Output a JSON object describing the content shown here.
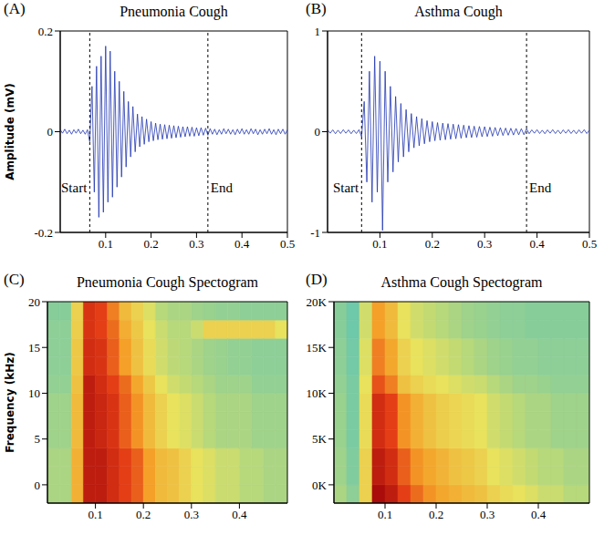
{
  "chart_data": [
    {
      "type": "line",
      "panel": "(A)",
      "title": "Pneumonia Cough",
      "y_label": "Amplitude (mV)",
      "x": [
        0,
        0.005,
        0.01,
        0.015,
        0.02,
        0.025,
        0.03,
        0.035,
        0.04,
        0.045,
        0.05,
        0.055,
        0.06,
        0.065,
        0.07,
        0.075,
        0.08,
        0.085,
        0.09,
        0.095,
        0.1,
        0.105,
        0.11,
        0.115,
        0.12,
        0.125,
        0.13,
        0.135,
        0.14,
        0.145,
        0.15,
        0.155,
        0.16,
        0.165,
        0.17,
        0.175,
        0.18,
        0.185,
        0.19,
        0.195,
        0.2,
        0.205,
        0.21,
        0.215,
        0.22,
        0.225,
        0.23,
        0.235,
        0.24,
        0.245,
        0.25,
        0.255,
        0.26,
        0.265,
        0.27,
        0.275,
        0.28,
        0.285,
        0.29,
        0.295,
        0.3,
        0.305,
        0.31,
        0.315,
        0.32,
        0.325,
        0.33,
        0.335,
        0.34,
        0.345,
        0.35,
        0.355,
        0.36,
        0.365,
        0.37,
        0.375,
        0.38,
        0.385,
        0.39,
        0.395,
        0.4,
        0.405,
        0.41,
        0.415,
        0.42,
        0.425,
        0.43,
        0.435,
        0.44,
        0.445,
        0.45,
        0.455,
        0.46,
        0.465,
        0.47,
        0.475,
        0.48,
        0.485,
        0.49,
        0.495,
        0.5
      ],
      "values": [
        0.004,
        -0.003,
        0.005,
        -0.004,
        0.003,
        -0.005,
        0.004,
        -0.003,
        0.005,
        -0.004,
        0.003,
        -0.005,
        0.004,
        -0.02,
        0.09,
        -0.12,
        0.13,
        -0.17,
        0.15,
        -0.16,
        0.17,
        -0.14,
        0.16,
        -0.13,
        0.12,
        -0.11,
        0.1,
        -0.09,
        0.08,
        -0.07,
        0.06,
        -0.05,
        0.05,
        -0.04,
        0.035,
        -0.03,
        0.03,
        -0.025,
        0.025,
        -0.02,
        0.02,
        -0.018,
        0.017,
        -0.016,
        0.015,
        -0.015,
        0.014,
        -0.014,
        0.013,
        -0.013,
        0.012,
        -0.012,
        0.011,
        -0.011,
        0.01,
        -0.01,
        0.01,
        -0.009,
        0.009,
        -0.009,
        0.008,
        -0.008,
        0.008,
        -0.007,
        0.007,
        -0.007,
        0.006,
        -0.005,
        0.005,
        -0.006,
        0.004,
        -0.005,
        0.006,
        -0.004,
        0.005,
        -0.005,
        0.004,
        -0.006,
        0.005,
        -0.004,
        0.006,
        -0.005,
        0.004,
        -0.005,
        0.006,
        -0.004,
        0.005,
        -0.006,
        0.004,
        -0.005,
        0.005,
        -0.004,
        0.006,
        -0.005,
        0.004,
        -0.006,
        0.005,
        -0.004,
        0.005,
        -0.005,
        0.004
      ],
      "color": "#1f35b0",
      "xlim": [
        0,
        0.5
      ],
      "xticks": [
        0.1,
        0.2,
        0.3,
        0.4,
        0.5
      ],
      "ylim": [
        -0.2,
        0.2
      ],
      "yticks": [
        -0.2,
        0,
        0.2
      ],
      "annotations": [
        {
          "text": "Start",
          "x": 0.065
        },
        {
          "text": "End",
          "x": 0.325
        }
      ]
    },
    {
      "type": "line",
      "panel": "(B)",
      "title": "Asthma Cough",
      "x": [
        0,
        0.005,
        0.01,
        0.015,
        0.02,
        0.025,
        0.03,
        0.035,
        0.04,
        0.045,
        0.05,
        0.055,
        0.06,
        0.065,
        0.07,
        0.075,
        0.08,
        0.085,
        0.09,
        0.095,
        0.1,
        0.105,
        0.11,
        0.115,
        0.12,
        0.125,
        0.13,
        0.135,
        0.14,
        0.145,
        0.15,
        0.155,
        0.16,
        0.165,
        0.17,
        0.175,
        0.18,
        0.185,
        0.19,
        0.195,
        0.2,
        0.205,
        0.21,
        0.215,
        0.22,
        0.225,
        0.23,
        0.235,
        0.24,
        0.245,
        0.25,
        0.255,
        0.26,
        0.265,
        0.27,
        0.275,
        0.28,
        0.285,
        0.29,
        0.295,
        0.3,
        0.305,
        0.31,
        0.315,
        0.32,
        0.325,
        0.33,
        0.335,
        0.34,
        0.345,
        0.35,
        0.355,
        0.36,
        0.365,
        0.37,
        0.375,
        0.38,
        0.385,
        0.39,
        0.395,
        0.4,
        0.405,
        0.41,
        0.415,
        0.42,
        0.425,
        0.43,
        0.435,
        0.44,
        0.445,
        0.45,
        0.455,
        0.46,
        0.465,
        0.47,
        0.475,
        0.48,
        0.485,
        0.49,
        0.495,
        0.5
      ],
      "values": [
        0.02,
        -0.015,
        0.018,
        -0.02,
        0.015,
        -0.018,
        0.02,
        -0.015,
        0.018,
        -0.02,
        0.015,
        -0.018,
        0.02,
        -0.05,
        0.3,
        -0.5,
        0.6,
        -0.7,
        0.75,
        -0.6,
        0.7,
        -0.98,
        0.6,
        -0.5,
        0.45,
        -0.4,
        0.35,
        -0.3,
        0.28,
        -0.25,
        0.22,
        -0.2,
        0.18,
        -0.16,
        0.15,
        -0.14,
        0.13,
        -0.12,
        0.11,
        -0.1,
        0.1,
        -0.09,
        0.09,
        -0.085,
        0.085,
        -0.08,
        0.08,
        -0.075,
        0.075,
        -0.07,
        0.07,
        -0.065,
        0.065,
        -0.06,
        0.06,
        -0.058,
        0.055,
        -0.055,
        0.052,
        -0.05,
        0.05,
        -0.048,
        0.045,
        -0.045,
        0.042,
        -0.04,
        0.04,
        -0.038,
        0.036,
        -0.035,
        0.034,
        -0.033,
        0.032,
        -0.031,
        0.03,
        -0.03,
        0.03,
        -0.02,
        0.018,
        -0.015,
        0.02,
        -0.018,
        0.015,
        -0.02,
        0.018,
        -0.015,
        0.02,
        -0.018,
        0.015,
        -0.02,
        0.018,
        -0.015,
        0.02,
        -0.018,
        0.015,
        -0.02,
        0.018,
        -0.015,
        0.02,
        -0.018,
        0.015
      ],
      "color": "#1f35b0",
      "xlim": [
        0,
        0.5
      ],
      "xticks": [
        0.1,
        0.2,
        0.3,
        0.4,
        0.5
      ],
      "ylim": [
        -1,
        1
      ],
      "yticks": [
        -1,
        0,
        1
      ],
      "annotations": [
        {
          "text": "Start",
          "x": 0.065
        },
        {
          "text": "End",
          "x": 0.38
        }
      ]
    },
    {
      "type": "heatmap",
      "panel": "(C)",
      "title": "Pneumonia Cough Spectogram",
      "y_label": "Frequency (kHz)",
      "x_edges": [
        0,
        0.025,
        0.05,
        0.075,
        0.1,
        0.125,
        0.15,
        0.175,
        0.2,
        0.225,
        0.25,
        0.275,
        0.3,
        0.325,
        0.35,
        0.375,
        0.4,
        0.425,
        0.45,
        0.475,
        0.5
      ],
      "y_edges": [
        -2,
        0,
        2,
        4,
        6,
        8,
        10,
        12,
        14,
        16,
        18,
        20
      ],
      "cells": [
        [
          0.4,
          0.4,
          0.65,
          0.95,
          0.95,
          0.9,
          0.85,
          0.8,
          0.7,
          0.62,
          0.6,
          0.55,
          0.5,
          0.48,
          0.45,
          0.45,
          0.42,
          0.42,
          0.4,
          0.4
        ],
        [
          0.4,
          0.4,
          0.65,
          0.95,
          0.95,
          0.9,
          0.85,
          0.8,
          0.7,
          0.62,
          0.6,
          0.55,
          0.5,
          0.48,
          0.45,
          0.45,
          0.42,
          0.42,
          0.4,
          0.4
        ],
        [
          0.4,
          0.4,
          0.65,
          0.95,
          0.95,
          0.9,
          0.85,
          0.8,
          0.7,
          0.62,
          0.6,
          0.55,
          0.5,
          0.48,
          0.45,
          0.45,
          0.42,
          0.42,
          0.4,
          0.4
        ],
        [
          0.38,
          0.38,
          0.62,
          0.95,
          0.92,
          0.88,
          0.8,
          0.72,
          0.62,
          0.55,
          0.5,
          0.48,
          0.45,
          0.42,
          0.4,
          0.4,
          0.4,
          0.38,
          0.38,
          0.38
        ],
        [
          0.38,
          0.38,
          0.62,
          0.95,
          0.92,
          0.88,
          0.8,
          0.72,
          0.62,
          0.55,
          0.5,
          0.48,
          0.45,
          0.42,
          0.4,
          0.4,
          0.4,
          0.38,
          0.38,
          0.38
        ],
        [
          0.38,
          0.38,
          0.62,
          0.95,
          0.92,
          0.88,
          0.8,
          0.72,
          0.62,
          0.55,
          0.5,
          0.48,
          0.45,
          0.42,
          0.4,
          0.4,
          0.4,
          0.38,
          0.38,
          0.38
        ],
        [
          0.36,
          0.36,
          0.6,
          0.95,
          0.9,
          0.85,
          0.78,
          0.68,
          0.58,
          0.5,
          0.46,
          0.44,
          0.42,
          0.4,
          0.38,
          0.38,
          0.38,
          0.36,
          0.36,
          0.36
        ],
        [
          0.35,
          0.35,
          0.58,
          0.9,
          0.88,
          0.8,
          0.7,
          0.6,
          0.52,
          0.46,
          0.43,
          0.42,
          0.4,
          0.38,
          0.37,
          0.36,
          0.36,
          0.35,
          0.35,
          0.35
        ],
        [
          0.35,
          0.35,
          0.58,
          0.9,
          0.88,
          0.8,
          0.7,
          0.6,
          0.52,
          0.46,
          0.43,
          0.42,
          0.4,
          0.38,
          0.37,
          0.36,
          0.36,
          0.35,
          0.35,
          0.35
        ],
        [
          0.35,
          0.35,
          0.56,
          0.88,
          0.85,
          0.78,
          0.66,
          0.58,
          0.5,
          0.45,
          0.42,
          0.42,
          0.45,
          0.55,
          0.55,
          0.55,
          0.55,
          0.55,
          0.55,
          0.5
        ],
        [
          0.34,
          0.34,
          0.55,
          0.88,
          0.85,
          0.75,
          0.62,
          0.55,
          0.48,
          0.42,
          0.4,
          0.4,
          0.38,
          0.37,
          0.36,
          0.36,
          0.35,
          0.35,
          0.35,
          0.35
        ]
      ],
      "cell_range": [
        0,
        1
      ],
      "xlim": [
        0,
        0.5
      ],
      "xticks": [
        0.1,
        0.2,
        0.3,
        0.4
      ],
      "ylim": [
        -2,
        20
      ],
      "yticks": [
        0,
        5,
        10,
        15,
        20
      ]
    },
    {
      "type": "heatmap",
      "panel": "(D)",
      "title": "Asthma Cough Spectogram",
      "x_edges": [
        0,
        0.025,
        0.05,
        0.075,
        0.1,
        0.125,
        0.15,
        0.175,
        0.2,
        0.225,
        0.25,
        0.275,
        0.3,
        0.325,
        0.35,
        0.375,
        0.4,
        0.425,
        0.45,
        0.475,
        0.5
      ],
      "y_edges": [
        -2,
        0,
        2,
        4,
        6,
        8,
        10,
        12,
        14,
        16,
        18,
        20
      ],
      "cells": [
        [
          0.4,
          0.35,
          0.55,
          1,
          0.95,
          0.85,
          0.78,
          0.72,
          0.68,
          0.65,
          0.62,
          0.6,
          0.55,
          0.52,
          0.5,
          0.48,
          0.45,
          0.45,
          0.42,
          0.42
        ],
        [
          0.38,
          0.33,
          0.55,
          0.95,
          0.9,
          0.8,
          0.72,
          0.68,
          0.64,
          0.6,
          0.58,
          0.55,
          0.5,
          0.48,
          0.46,
          0.44,
          0.42,
          0.42,
          0.4,
          0.4
        ],
        [
          0.38,
          0.33,
          0.55,
          0.95,
          0.9,
          0.8,
          0.72,
          0.68,
          0.64,
          0.6,
          0.58,
          0.55,
          0.5,
          0.48,
          0.46,
          0.44,
          0.42,
          0.42,
          0.4,
          0.4
        ],
        [
          0.37,
          0.32,
          0.52,
          0.9,
          0.85,
          0.72,
          0.65,
          0.6,
          0.56,
          0.54,
          0.52,
          0.5,
          0.46,
          0.44,
          0.42,
          0.4,
          0.4,
          0.38,
          0.38,
          0.38
        ],
        [
          0.37,
          0.32,
          0.52,
          0.9,
          0.85,
          0.72,
          0.65,
          0.6,
          0.56,
          0.54,
          0.52,
          0.5,
          0.46,
          0.44,
          0.42,
          0.4,
          0.4,
          0.38,
          0.38,
          0.38
        ],
        [
          0.37,
          0.32,
          0.52,
          0.9,
          0.85,
          0.72,
          0.65,
          0.6,
          0.56,
          0.54,
          0.52,
          0.5,
          0.46,
          0.44,
          0.42,
          0.4,
          0.4,
          0.38,
          0.38,
          0.38
        ],
        [
          0.36,
          0.32,
          0.5,
          0.82,
          0.75,
          0.6,
          0.55,
          0.52,
          0.5,
          0.48,
          0.46,
          0.45,
          0.42,
          0.4,
          0.38,
          0.38,
          0.37,
          0.36,
          0.36,
          0.36
        ],
        [
          0.35,
          0.31,
          0.48,
          0.75,
          0.68,
          0.55,
          0.5,
          0.48,
          0.46,
          0.44,
          0.42,
          0.4,
          0.38,
          0.37,
          0.36,
          0.36,
          0.35,
          0.35,
          0.35,
          0.35
        ],
        [
          0.35,
          0.31,
          0.48,
          0.75,
          0.68,
          0.55,
          0.5,
          0.48,
          0.46,
          0.44,
          0.42,
          0.4,
          0.38,
          0.37,
          0.36,
          0.36,
          0.35,
          0.35,
          0.35,
          0.35
        ],
        [
          0.34,
          0.3,
          0.46,
          0.7,
          0.62,
          0.5,
          0.46,
          0.44,
          0.42,
          0.4,
          0.38,
          0.37,
          0.36,
          0.35,
          0.35,
          0.34,
          0.34,
          0.34,
          0.34,
          0.34
        ],
        [
          0.34,
          0.3,
          0.46,
          0.7,
          0.62,
          0.5,
          0.46,
          0.44,
          0.42,
          0.4,
          0.38,
          0.37,
          0.36,
          0.35,
          0.35,
          0.34,
          0.34,
          0.34,
          0.34,
          0.34
        ]
      ],
      "cell_range": [
        0,
        1
      ],
      "xlim": [
        0,
        0.5
      ],
      "xticks": [
        0.1,
        0.2,
        0.3,
        0.4
      ],
      "ylim": [
        -2,
        20
      ],
      "yticks": [
        {
          "value": 0,
          "label": "0K"
        },
        {
          "value": 5,
          "label": "5K"
        },
        {
          "value": 10,
          "label": "10K"
        },
        {
          "value": 15,
          "label": "15K"
        },
        {
          "value": 20,
          "label": "20K"
        }
      ]
    }
  ]
}
